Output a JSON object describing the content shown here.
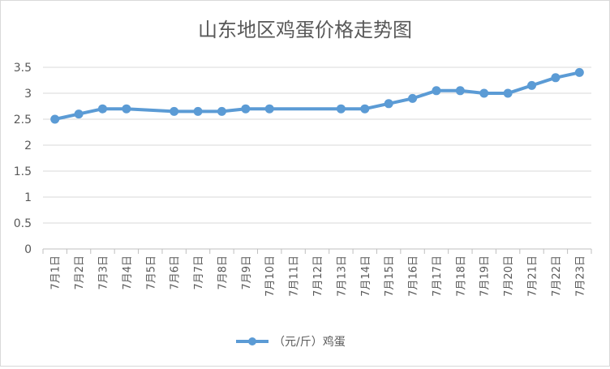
{
  "chart_data": {
    "type": "line",
    "title": "山东地区鸡蛋价格走势图",
    "xlabel": "",
    "ylabel": "",
    "categories": [
      "7月1日",
      "7月2日",
      "7月3日",
      "7月4日",
      "7月5日",
      "7月6日",
      "7月7日",
      "7月8日",
      "7月9日",
      "7月10日",
      "7月11日",
      "7月12日",
      "7月13日",
      "7月14日",
      "7月15日",
      "7月16日",
      "7月17日",
      "7月18日",
      "7月19日",
      "7月20日",
      "7月21日",
      "7月22日",
      "7月23日"
    ],
    "series": [
      {
        "name": "（元/斤）鸡蛋",
        "values": [
          2.5,
          2.6,
          2.7,
          2.7,
          null,
          2.65,
          2.65,
          2.65,
          2.7,
          2.7,
          null,
          null,
          2.7,
          2.7,
          2.8,
          2.9,
          3.05,
          3.05,
          3.0,
          3.0,
          3.15,
          3.3,
          3.4
        ],
        "color": "#5b9bd5"
      }
    ],
    "ylim": [
      0,
      3.5
    ],
    "yticks": [
      0,
      0.5,
      1,
      1.5,
      2,
      2.5,
      3,
      3.5
    ],
    "grid": true,
    "legend": "bottom-center"
  }
}
